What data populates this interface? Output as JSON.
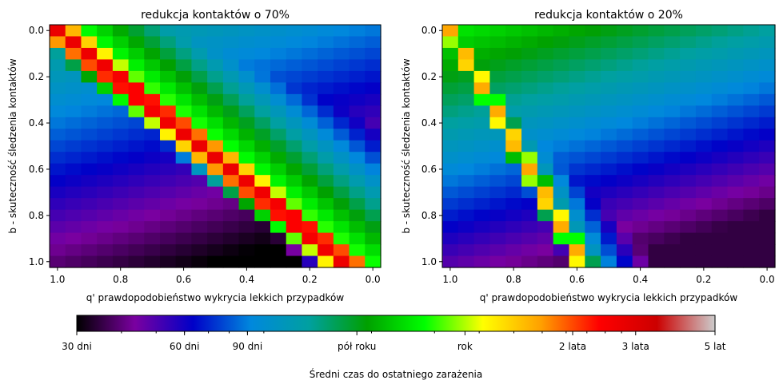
{
  "chart_data": [
    {
      "type": "heatmap",
      "title": "redukcja kontaktów o 70%",
      "xlabel": "q' prawdopodobieństwo wykrycia lekkich przypadków",
      "ylabel": "b - skuteczność śledzenia kontaktów",
      "xlim": [
        1.0,
        0.0
      ],
      "ylim": [
        0.0,
        1.0
      ],
      "xticks": [
        "1.0",
        "0.8",
        "0.6",
        "0.4",
        "0.2",
        "0.0"
      ],
      "yticks": [
        "0.0",
        "0.2",
        "0.4",
        "0.6",
        "0.8",
        "1.0"
      ],
      "grid": false,
      "value_unit": "days",
      "model": {
        "ridge_k": 1.1,
        "ridge_peak_days": 1000,
        "ridge_width": 0.05,
        "ridge_span_end": 1.0,
        "floor_days": 30,
        "top_left_days": 150,
        "corner_tail_days": 380
      }
    },
    {
      "type": "heatmap",
      "title": "redukcja kontaktów o 20%",
      "xlabel": "q' prawdopodobieństwo wykrycia lekkich przypadków",
      "ylabel": "b - skuteczność śledzenia kontaktów",
      "xlim": [
        1.0,
        0.0
      ],
      "ylim": [
        0.0,
        1.0
      ],
      "xticks": [
        "1.0",
        "0.8",
        "0.6",
        "0.4",
        "0.2",
        "0.0"
      ],
      "yticks": [
        "0.0",
        "0.2",
        "0.4",
        "0.6",
        "0.8",
        "1.0"
      ],
      "grid": false,
      "value_unit": "days",
      "model": {
        "ridge_k": 2.4,
        "ridge_peak_days": 580,
        "ridge_width": 0.05,
        "ridge_span_end": 1.0,
        "floor_days": 35,
        "top_left_days": 260,
        "corner_tail_days": 160
      }
    }
  ],
  "colorbar": {
    "label": "Średni czas do ostatniego zarażenia",
    "scale": "log",
    "range_days": [
      30,
      1825
    ],
    "ticks": [
      {
        "days": 30,
        "label": "30 dni"
      },
      {
        "days": 60,
        "label": "60 dni"
      },
      {
        "days": 90,
        "label": "90 dni"
      },
      {
        "days": 182,
        "label": "pół roku"
      },
      {
        "days": 365,
        "label": "rok"
      },
      {
        "days": 730,
        "label": "2 lata"
      },
      {
        "days": 1095,
        "label": "3 lata"
      },
      {
        "days": 1825,
        "label": "5 lat"
      }
    ],
    "colormap": [
      "#000000",
      "#7a00a0",
      "#0000c8",
      "#0088dd",
      "#00a0a0",
      "#00a000",
      "#00ff00",
      "#ffff00",
      "#ffa000",
      "#ff0000",
      "#cc0000",
      "#cccccc"
    ]
  }
}
